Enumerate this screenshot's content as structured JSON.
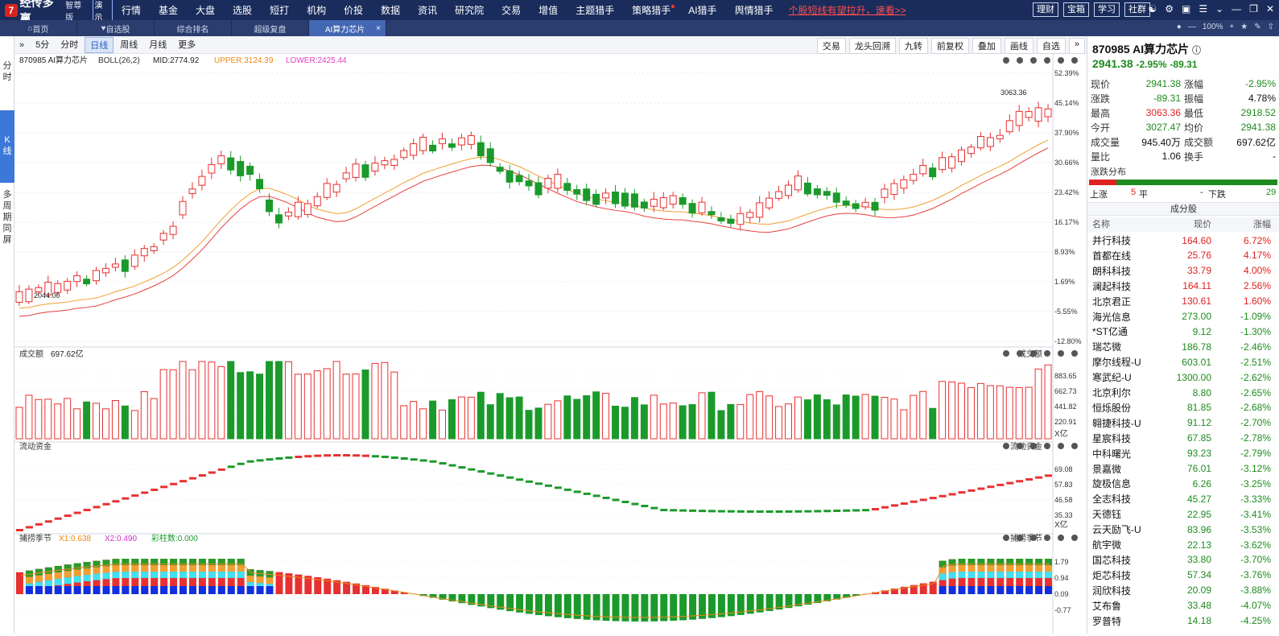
{
  "app": {
    "logo_mark": "7",
    "name": "经传多赢",
    "edition": "智尊版",
    "demo": "演示"
  },
  "menu": [
    "行情",
    "基金",
    "大盘",
    "选股",
    "短打",
    "机构",
    "价投",
    "数据",
    "资讯",
    "研究院",
    "交易",
    "增值",
    "主题猎手",
    "策略猎手",
    "AI猎手",
    "舆情猎手"
  ],
  "promo": "个股短线有望拉升，速看>>",
  "top_right_buttons": [
    "理财",
    "宝箱",
    "学习",
    "社群"
  ],
  "top_icons": [
    "user-icon",
    "gear-icon",
    "window-icon",
    "menu-icon",
    "chevron-down-icon",
    "minimize-icon",
    "restore-icon",
    "close-icon"
  ],
  "tabs": [
    {
      "label": "首页",
      "icon": "home-icon"
    },
    {
      "label": "自选股",
      "icon": "heart-icon"
    },
    {
      "label": "综合排名"
    },
    {
      "label": "超级复盘"
    },
    {
      "label": "AI算力芯片",
      "active": true
    }
  ],
  "zoom": {
    "level": "100%"
  },
  "left_strip": [
    "分时",
    "K线",
    "多周期同屏"
  ],
  "toolbar": {
    "periods": [
      "5分",
      "分时",
      "日线",
      "周线",
      "月线",
      "更多"
    ],
    "active_period": "日线",
    "right": [
      "交易",
      "龙头回溯",
      "九转",
      "前复权",
      "叠加",
      "画线",
      "自选"
    ]
  },
  "indicator_bar": {
    "stock": "870985 AI算力芯片",
    "indicator": "BOLL(26,2)",
    "mid": "MID:2774.92",
    "upper": "UPPER:3124.39",
    "lower": "LOWER:2425.44"
  },
  "panels": {
    "volume": {
      "title": "成交额",
      "value": "697.62亿",
      "right_label": "成交额",
      "unit": "X亿"
    },
    "flow": {
      "title": "流动资金",
      "right_label": "流动资金",
      "unit": "X亿"
    },
    "cycle": {
      "title": "捕捞季节",
      "x1": "X1:0.638",
      "x2": "X2:0.490",
      "bars": "彩柱数:0.000",
      "right_label": "捕捞季节"
    }
  },
  "chart_data": {
    "type": "candlestick",
    "price_axis_pct": [
      "52.39%",
      "45.14%",
      "37.90%",
      "30.66%",
      "23.42%",
      "16.17%",
      "8.93%",
      "1.69%",
      "-5.55%",
      "-12.80%"
    ],
    "annotations": {
      "high": "3063.36",
      "low": "2044.00"
    },
    "volume_axis": [
      "883.65",
      "662.73",
      "441.82",
      "220.91"
    ],
    "flow_axis": [
      "69.08",
      "57.83",
      "46.58",
      "35.33"
    ],
    "cycle_axis": [
      "1.79",
      "0.94",
      "0.09",
      "-0.77"
    ]
  },
  "quote": {
    "title": "870985 AI算力芯片",
    "price": "2941.38",
    "chg_pct": "-2.95%",
    "chg": "-89.31",
    "rows": [
      {
        "l1": "现价",
        "v1": "2941.38",
        "c1": "dn",
        "l2": "涨幅",
        "v2": "-2.95%",
        "c2": "dn"
      },
      {
        "l1": "涨跌",
        "v1": "-89.31",
        "c1": "dn",
        "l2": "振幅",
        "v2": "4.78%",
        "c2": "blk"
      },
      {
        "l1": "最高",
        "v1": "3063.36",
        "c1": "up",
        "l2": "最低",
        "v2": "2918.52",
        "c2": "dn"
      },
      {
        "l1": "今开",
        "v1": "3027.47",
        "c1": "dn",
        "l2": "均价",
        "v2": "2941.38",
        "c2": "dn"
      },
      {
        "l1": "成交量",
        "v1": "945.40万",
        "c1": "blk",
        "l2": "成交额",
        "v2": "697.62亿",
        "c2": "blk"
      },
      {
        "l1": "量比",
        "v1": "1.06",
        "c1": "blk",
        "l2": "换手",
        "v2": "-",
        "c2": "blk"
      }
    ]
  },
  "distribution": {
    "title": "涨跌分布",
    "up_label": "上涨",
    "up": "5",
    "flat_label": "平",
    "flat": "-",
    "down_label": "下跌",
    "down": "29",
    "up_fraction": 0.147
  },
  "components": {
    "title": "成分股",
    "headers": [
      "名称",
      "现价",
      "涨幅"
    ],
    "rows": [
      {
        "n": "并行科技",
        "p": "164.60",
        "c": "6.72%",
        "d": "up"
      },
      {
        "n": "首都在线",
        "p": "25.76",
        "c": "4.17%",
        "d": "up"
      },
      {
        "n": "朗科科技",
        "p": "33.79",
        "c": "4.00%",
        "d": "up"
      },
      {
        "n": "澜起科技",
        "p": "164.11",
        "c": "2.56%",
        "d": "up"
      },
      {
        "n": "北京君正",
        "p": "130.61",
        "c": "1.60%",
        "d": "up"
      },
      {
        "n": "海光信息",
        "p": "273.00",
        "c": "-1.09%",
        "d": "dn"
      },
      {
        "n": "*ST亿通",
        "p": "9.12",
        "c": "-1.30%",
        "d": "dn"
      },
      {
        "n": "瑞芯微",
        "p": "186.78",
        "c": "-2.46%",
        "d": "dn"
      },
      {
        "n": "摩尔线程-U",
        "p": "603.01",
        "c": "-2.51%",
        "d": "dn"
      },
      {
        "n": "寒武纪-U",
        "p": "1300.00",
        "c": "-2.62%",
        "d": "dn"
      },
      {
        "n": "北京利尔",
        "p": "8.80",
        "c": "-2.65%",
        "d": "dn"
      },
      {
        "n": "恒烁股份",
        "p": "81.85",
        "c": "-2.68%",
        "d": "dn"
      },
      {
        "n": "翱捷科技-U",
        "p": "91.12",
        "c": "-2.70%",
        "d": "dn"
      },
      {
        "n": "星宸科技",
        "p": "67.85",
        "c": "-2.78%",
        "d": "dn"
      },
      {
        "n": "中科曙光",
        "p": "93.23",
        "c": "-2.79%",
        "d": "dn"
      },
      {
        "n": "景嘉微",
        "p": "76.01",
        "c": "-3.12%",
        "d": "dn"
      },
      {
        "n": "旋极信息",
        "p": "6.26",
        "c": "-3.25%",
        "d": "dn"
      },
      {
        "n": "全志科技",
        "p": "45.27",
        "c": "-3.33%",
        "d": "dn"
      },
      {
        "n": "天德钰",
        "p": "22.95",
        "c": "-3.41%",
        "d": "dn"
      },
      {
        "n": "云天励飞-U",
        "p": "83.96",
        "c": "-3.53%",
        "d": "dn"
      },
      {
        "n": "航宇微",
        "p": "22.13",
        "c": "-3.62%",
        "d": "dn"
      },
      {
        "n": "国芯科技",
        "p": "33.80",
        "c": "-3.70%",
        "d": "dn"
      },
      {
        "n": "炬芯科技",
        "p": "57.34",
        "c": "-3.76%",
        "d": "dn"
      },
      {
        "n": "润欣科技",
        "p": "20.09",
        "c": "-3.88%",
        "d": "dn"
      },
      {
        "n": "艾布鲁",
        "p": "33.48",
        "c": "-4.07%",
        "d": "dn"
      },
      {
        "n": "罗普特",
        "p": "14.18",
        "c": "-4.25%",
        "d": "dn"
      }
    ]
  }
}
